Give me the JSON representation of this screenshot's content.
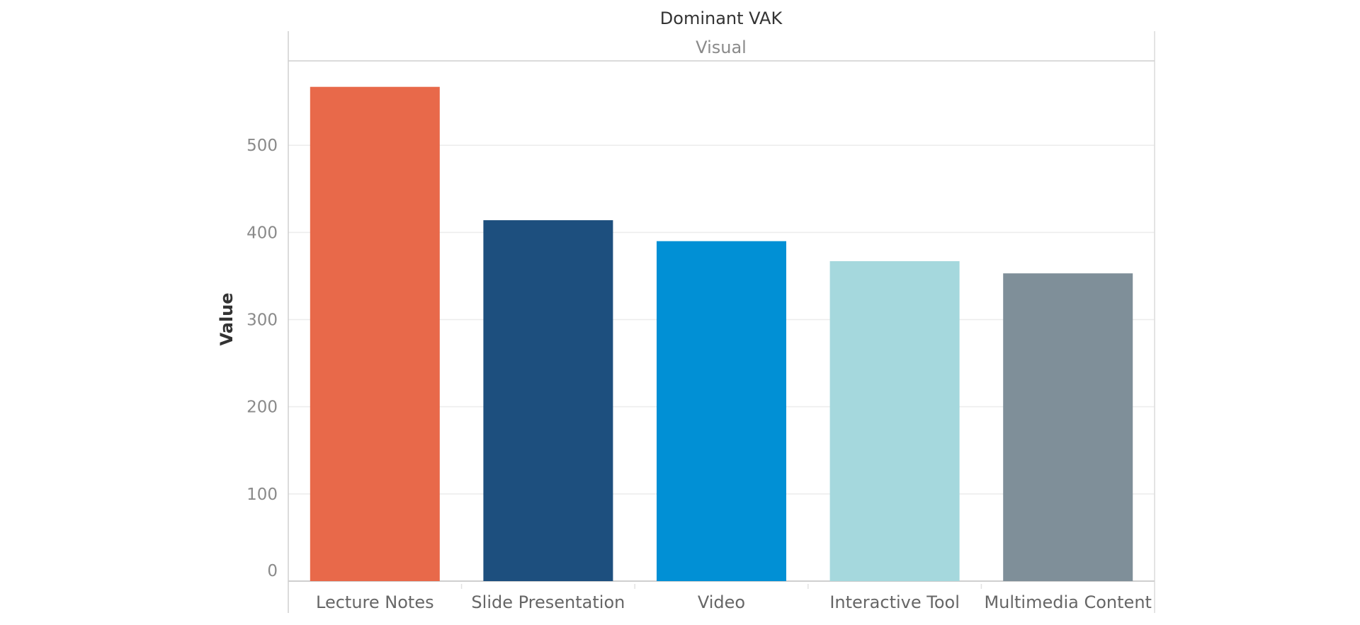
{
  "chart_data": {
    "type": "bar",
    "title": "Dominant VAK",
    "header_value": "Visual",
    "ylabel": "Value",
    "xlabel": "",
    "ylim": [
      0,
      580
    ],
    "yticks": [
      0,
      100,
      200,
      300,
      400,
      500
    ],
    "grid": true,
    "categories": [
      "Lecture Notes",
      "Slide Presentation",
      "Video",
      "Interactive Tool",
      "Multimedia Content"
    ],
    "values": [
      567,
      414,
      390,
      367,
      353
    ],
    "colors": [
      "#E8694A",
      "#1D4F7E",
      "#0190D5",
      "#A5D8DD",
      "#7F8F99"
    ]
  }
}
